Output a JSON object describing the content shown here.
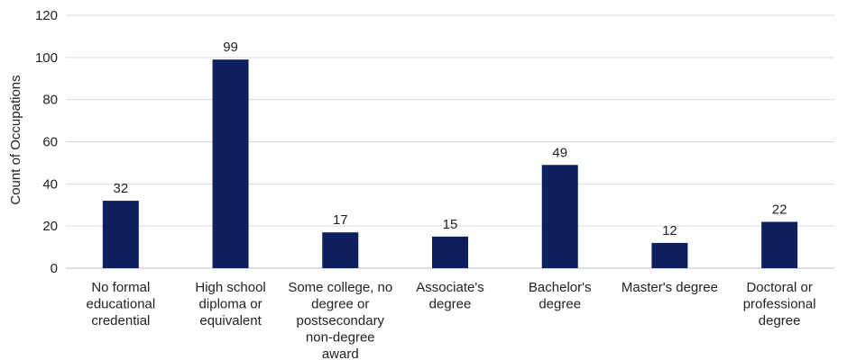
{
  "chart_data": {
    "type": "bar",
    "title": "",
    "xlabel": "",
    "ylabel": "Count of Occupations",
    "ylim": [
      0,
      120
    ],
    "yticks": [
      0,
      20,
      40,
      60,
      80,
      100,
      120
    ],
    "grid": true,
    "legend": "none",
    "bar_color": "#0D1F5C",
    "categories": [
      [
        "No formal",
        "educational",
        "credential"
      ],
      [
        "High school",
        "diploma or",
        "equivalent"
      ],
      [
        "Some college, no",
        "degree or",
        "postsecondary",
        "non-degree",
        "award"
      ],
      [
        "Associate's",
        "degree"
      ],
      [
        "Bachelor's",
        "degree"
      ],
      [
        "Master's degree"
      ],
      [
        "Doctoral or",
        "professional",
        "degree"
      ]
    ],
    "values": [
      32,
      99,
      17,
      15,
      49,
      12,
      22
    ],
    "data_labels": [
      "32",
      "99",
      "17",
      "15",
      "49",
      "12",
      "22"
    ]
  }
}
